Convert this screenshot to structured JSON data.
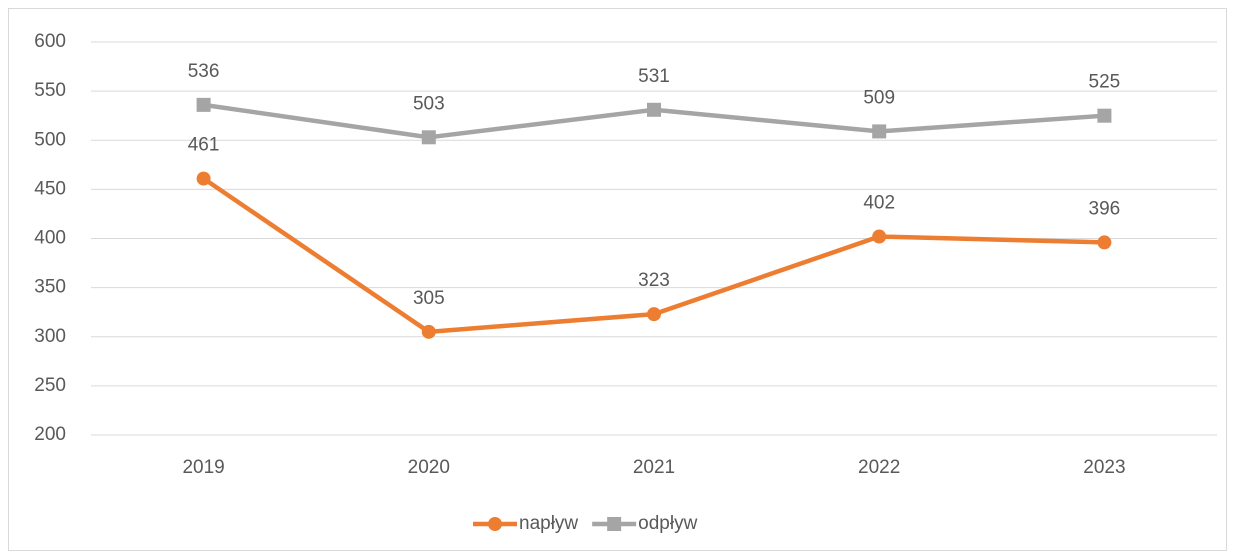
{
  "chart_data": {
    "type": "line",
    "categories": [
      "2019",
      "2020",
      "2021",
      "2022",
      "2023"
    ],
    "series": [
      {
        "name": "napływ",
        "color": "#ed7d31",
        "marker": "circle",
        "values": [
          461,
          305,
          323,
          402,
          396
        ]
      },
      {
        "name": "odpływ",
        "color": "#a5a5a5",
        "marker": "square",
        "values": [
          536,
          503,
          531,
          509,
          525
        ]
      }
    ],
    "ylim": [
      200,
      600
    ],
    "yticks": [
      200,
      250,
      300,
      350,
      400,
      450,
      500,
      550,
      600
    ],
    "grid": true,
    "legend": "bottom",
    "data_labels": true
  }
}
